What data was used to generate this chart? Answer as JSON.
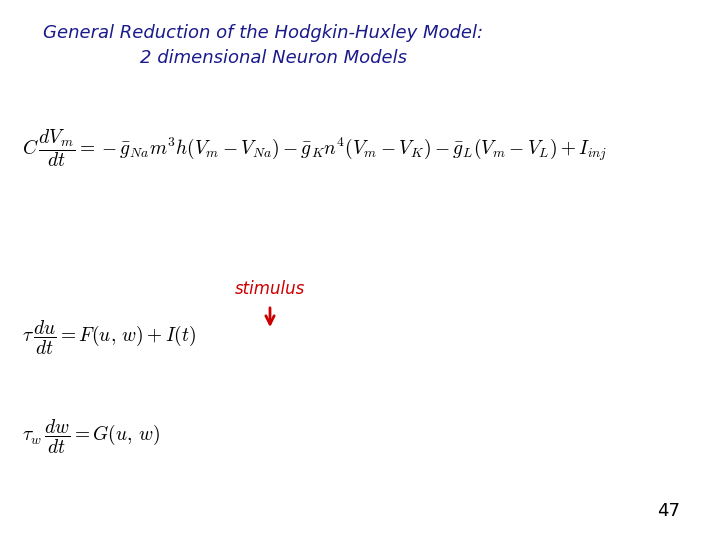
{
  "title_line1": "General Reduction of the Hodgkin-Huxley Model:",
  "title_line2": "2 dimensional Neuron Models",
  "title_color": "#1a1a8c",
  "title_fontsize": 13,
  "bg_color": "#ffffff",
  "stimulus_text": "stimulus",
  "stimulus_color": "#cc0000",
  "page_number": "47",
  "eq_fontsize": 14
}
